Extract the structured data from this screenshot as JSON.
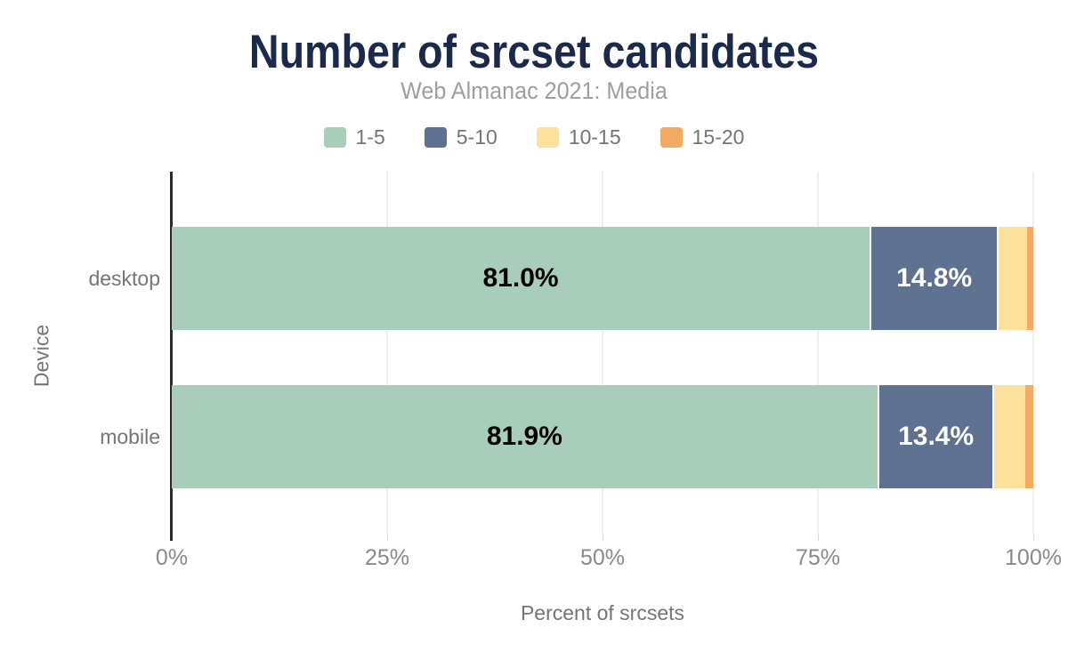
{
  "figure": {
    "title": "Number of srcset candidates",
    "subtitle": "Web Almanac 2021: Media"
  },
  "chart_data": {
    "type": "bar",
    "orientation": "horizontal",
    "stacked": true,
    "title": "Number of srcset candidates",
    "subtitle": "Web Almanac 2021: Media",
    "xlabel": "Percent of srcsets",
    "ylabel": "Device",
    "categories": [
      "desktop",
      "mobile"
    ],
    "xlim": [
      0,
      100
    ],
    "grid": true,
    "legend_position": "top-center",
    "x_ticks": [
      {
        "value": 0,
        "label": "0%"
      },
      {
        "value": 25,
        "label": "25%"
      },
      {
        "value": 50,
        "label": "50%"
      },
      {
        "value": 75,
        "label": "75%"
      },
      {
        "value": 100,
        "label": "100%"
      }
    ],
    "series": [
      {
        "name": "1-5",
        "color": "#a9cdbb",
        "values": [
          81.0,
          81.9
        ],
        "value_labels": [
          "81.0%",
          "81.9%"
        ],
        "label_color": "#000000"
      },
      {
        "name": "5-10",
        "color": "#5e7191",
        "values": [
          14.8,
          13.4
        ],
        "value_labels": [
          "14.8%",
          "13.4%"
        ],
        "label_color": "#ffffff"
      },
      {
        "name": "10-15",
        "color": "#fbe19c",
        "values": [
          3.5,
          3.8
        ],
        "value_labels": [
          "",
          ""
        ],
        "label_color": "#000000"
      },
      {
        "name": "15-20",
        "color": "#f3aa63",
        "values": [
          0.7,
          0.9
        ],
        "value_labels": [
          "",
          ""
        ],
        "label_color": "#000000"
      }
    ]
  },
  "colors": {
    "title_text": "#1b2a4b",
    "subtitle_text": "#9e9e9e",
    "axis_text": "#757575",
    "tick_text": "#8a8a8a",
    "gridline": "#efefef",
    "y_axis_line": "#2b2b2b",
    "background": "#ffffff",
    "bar_label_dark": "#000000",
    "bar_label_light": "#ffffff"
  }
}
